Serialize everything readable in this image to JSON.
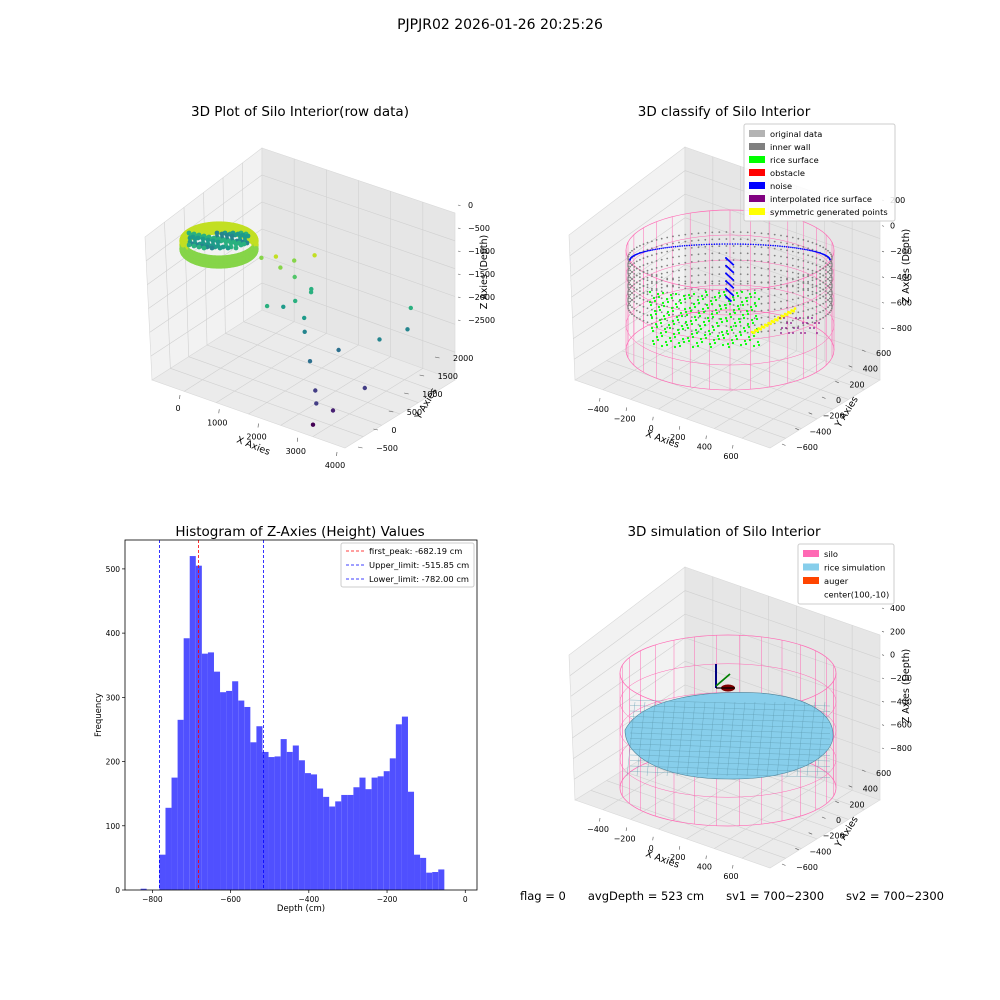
{
  "figure": {
    "suptitle": "PJPJR02 2026-01-26 20:25:26",
    "footer": {
      "flag": "flag = 0",
      "avgdepth": "avgDepth = 523 cm",
      "sv1": "sv1 = 700~2300",
      "sv2": "sv2 = 700~2300"
    }
  },
  "colors": {
    "original_data": "#b3b3b3",
    "inner_wall": "#808080",
    "rice_surface": "#00ff00",
    "obstacle": "#ff0000",
    "noise": "#0000ff",
    "interpolated_rice_surface": "#800080",
    "symmetric_generated_points": "#ffff00",
    "silo": "#ff69b4",
    "rice_simulation": "#87ceeb",
    "auger": "#ff4500",
    "hist_bar": "#5050ff"
  },
  "chart_data": [
    {
      "type": "scatter3d",
      "title": "3D Plot of Silo Interior(row data)",
      "xlabel": "X Axies",
      "ylabel": "Y Axies",
      "zlabel": "Z Axies (Depth)",
      "x_ticks": [
        "0",
        "1000",
        "2000",
        "3000",
        "4000"
      ],
      "y_ticks": [
        "−500",
        "0",
        "500",
        "1000",
        "1500",
        "2000"
      ],
      "z_ticks": [
        "0",
        "−500",
        "−1000",
        "−1500",
        "−2000",
        "−2500"
      ],
      "colormap": "viridis",
      "points": [
        {
          "x": 900,
          "y": 600,
          "z": -400
        },
        {
          "x": 1150,
          "y": 700,
          "z": -350
        },
        {
          "x": 1300,
          "y": 650,
          "z": -500
        },
        {
          "x": 1700,
          "y": 1100,
          "z": -350
        },
        {
          "x": 1400,
          "y": 900,
          "z": -450
        },
        {
          "x": 1500,
          "y": 800,
          "z": -700
        },
        {
          "x": 1800,
          "y": 900,
          "z": -900
        },
        {
          "x": 1750,
          "y": 950,
          "z": -1000
        },
        {
          "x": 1600,
          "y": 700,
          "z": -1100
        },
        {
          "x": 1500,
          "y": 500,
          "z": -1150
        },
        {
          "x": 1900,
          "y": 600,
          "z": -1300
        },
        {
          "x": 1300,
          "y": 300,
          "z": -1100
        },
        {
          "x": 2000,
          "y": 500,
          "z": -1500
        },
        {
          "x": 3500,
          "y": 1600,
          "z": -1100
        },
        {
          "x": 3600,
          "y": 1400,
          "z": -1400
        },
        {
          "x": 3300,
          "y": 1000,
          "z": -1500
        },
        {
          "x": 2700,
          "y": 600,
          "z": -1700
        },
        {
          "x": 2300,
          "y": 300,
          "z": -1900
        },
        {
          "x": 3400,
          "y": 500,
          "z": -2200
        },
        {
          "x": 2600,
          "y": 100,
          "z": -2300
        },
        {
          "x": 2800,
          "y": -100,
          "z": -2400
        },
        {
          "x": 3100,
          "y": 0,
          "z": -2500
        },
        {
          "x": 2900,
          "y": -300,
          "z": -2700
        }
      ]
    },
    {
      "type": "scatter3d",
      "title": "3D classify of Silo Interior",
      "xlabel": "X Axies",
      "ylabel": "Y Axies",
      "zlabel": "Z Axies (Depth)",
      "x_ticks": [
        "−400",
        "−200",
        "0",
        "200",
        "400",
        "600"
      ],
      "y_ticks": [
        "−600",
        "−400",
        "−200",
        "0",
        "200",
        "400",
        "600"
      ],
      "z_ticks": [
        "200",
        "0",
        "−200",
        "−400",
        "−600",
        "−800"
      ],
      "legend": [
        {
          "label": "original data",
          "key": "original_data"
        },
        {
          "label": "inner wall",
          "key": "inner_wall"
        },
        {
          "label": "rice surface",
          "key": "rice_surface"
        },
        {
          "label": "obstacle",
          "key": "obstacle"
        },
        {
          "label": "noise",
          "key": "noise"
        },
        {
          "label": "interpolated rice surface",
          "key": "interpolated_rice_surface"
        },
        {
          "label": "symmetric generated points",
          "key": "symmetric_generated_points"
        }
      ],
      "legend_loc": "upper right"
    },
    {
      "type": "bar",
      "title": "Histogram of Z-Axies (Height) Values",
      "xlabel": "Depth (cm)",
      "ylabel": "Frequency",
      "xlim": [
        -870,
        30
      ],
      "ylim": [
        0,
        545
      ],
      "x_ticks": [
        -800,
        -600,
        -400,
        -200,
        0
      ],
      "x_tick_labels": [
        "−800",
        "−600",
        "−400",
        "−200",
        "0"
      ],
      "y_ticks": [
        0,
        100,
        200,
        300,
        400,
        500
      ],
      "bin_start": -782,
      "bin_width": 15.5,
      "values": [
        55,
        128,
        175,
        265,
        392,
        520,
        505,
        368,
        370,
        340,
        308,
        310,
        325,
        295,
        285,
        230,
        255,
        215,
        207,
        208,
        235,
        215,
        225,
        202,
        182,
        180,
        158,
        145,
        130,
        138,
        148,
        148,
        160,
        175,
        157,
        175,
        177,
        185,
        205,
        258,
        270,
        153,
        55,
        50,
        27,
        28,
        32
      ],
      "lines": [
        {
          "value": -682.19,
          "label": "first_peak: -682.19 cm",
          "color": "#ff0000"
        },
        {
          "value": -515.85,
          "label": "Upper_limit: -515.85 cm",
          "color": "#0000ff"
        },
        {
          "value": -782.0,
          "label": "Lower_limit: -782.00 cm",
          "color": "#0000ff"
        }
      ],
      "legend_loc": "upper right"
    },
    {
      "type": "surface3d",
      "title": "3D simulation of Silo Interior",
      "xlabel": "X Axies",
      "ylabel": "Y Axies",
      "zlabel": "Z Axies (Depth)",
      "x_ticks": [
        "−400",
        "−200",
        "0",
        "200",
        "400",
        "600"
      ],
      "y_ticks": [
        "−600",
        "−400",
        "−200",
        "0",
        "200",
        "400",
        "600"
      ],
      "z_ticks": [
        "400",
        "200",
        "0",
        "−200",
        "−400",
        "−600",
        "−800"
      ],
      "legend": [
        {
          "label": "silo",
          "key": "silo"
        },
        {
          "label": "rice simulation",
          "key": "rice_simulation"
        },
        {
          "label": "auger",
          "key": "auger"
        },
        {
          "label": "center(100,-10)",
          "key": ""
        }
      ],
      "legend_loc": "upper right"
    }
  ]
}
